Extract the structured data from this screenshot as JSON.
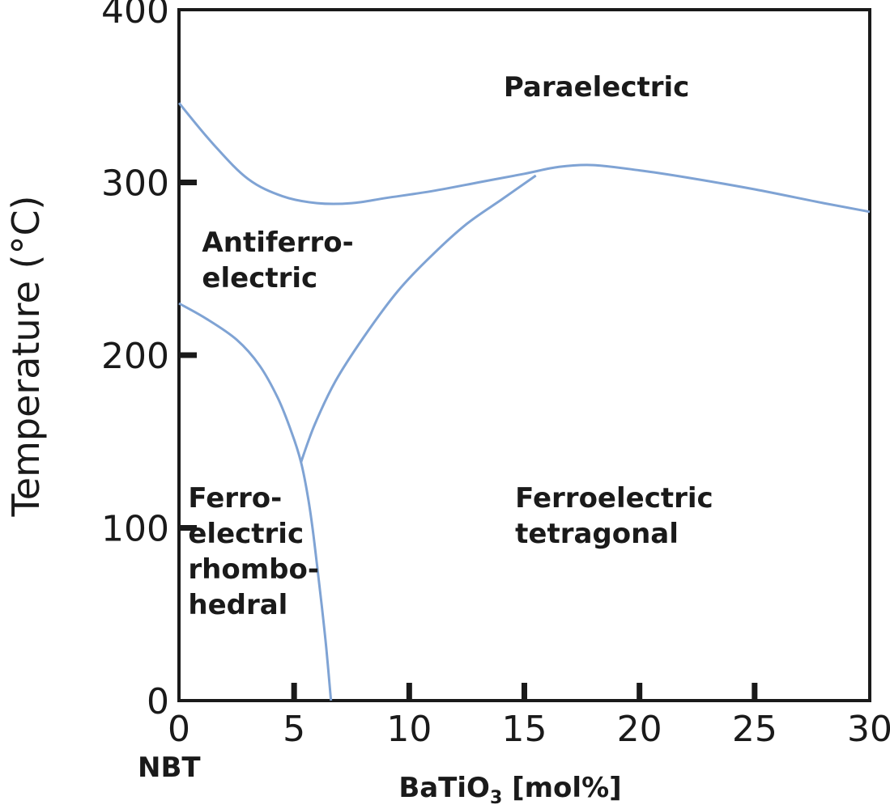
{
  "chart_data": {
    "type": "line",
    "title": "",
    "xlabel": {
      "main": "BaTiO",
      "sub": "3",
      "rest": " [mol%]"
    },
    "ylabel": "Temperature (°C)",
    "x_corner_label": "NBT",
    "xlim": [
      0,
      30
    ],
    "ylim": [
      0,
      400
    ],
    "xticks": [
      0,
      5,
      10,
      15,
      20,
      25,
      30
    ],
    "yticks": [
      0,
      100,
      200,
      300,
      400
    ],
    "grid": false,
    "line_color": "#7fa3d4",
    "series": [
      {
        "points": [
          [
            0,
            346
          ],
          [
            1.5,
            322
          ],
          [
            3,
            302
          ],
          [
            4.5,
            292
          ],
          [
            6,
            288
          ],
          [
            7.5,
            288
          ],
          [
            9,
            291
          ],
          [
            11,
            295
          ],
          [
            13,
            300
          ],
          [
            15,
            305
          ],
          [
            16.5,
            309
          ],
          [
            18,
            310
          ],
          [
            20,
            307
          ],
          [
            22,
            303
          ],
          [
            25,
            296
          ],
          [
            28,
            288
          ],
          [
            30,
            283
          ]
        ]
      },
      {
        "points": [
          [
            0,
            230
          ],
          [
            1.2,
            221
          ],
          [
            2.5,
            209
          ],
          [
            3.5,
            194
          ],
          [
            4.3,
            175
          ],
          [
            4.9,
            155
          ],
          [
            5.3,
            138
          ],
          [
            5.6,
            118
          ],
          [
            5.8,
            100
          ],
          [
            6.0,
            78
          ],
          [
            6.2,
            55
          ],
          [
            6.4,
            30
          ],
          [
            6.6,
            0
          ]
        ]
      },
      {
        "points": [
          [
            5.3,
            138
          ],
          [
            5.9,
            160
          ],
          [
            6.8,
            185
          ],
          [
            8,
            210
          ],
          [
            9.5,
            237
          ],
          [
            11,
            258
          ],
          [
            12.5,
            276
          ],
          [
            14,
            290
          ],
          [
            15.5,
            304
          ]
        ]
      }
    ],
    "regions": [
      {
        "lines": [
          "Paraelectric"
        ],
        "x": 14.1,
        "y": 350
      },
      {
        "lines": [
          "Antiferro-",
          "electric"
        ],
        "x": 1.0,
        "y": 260
      },
      {
        "lines": [
          "Ferro-",
          "electric",
          "rhombo-",
          "hedral"
        ],
        "x": 0.4,
        "y": 112
      },
      {
        "lines": [
          "Ferroelectric",
          "tetragonal"
        ],
        "x": 14.6,
        "y": 112
      }
    ]
  }
}
